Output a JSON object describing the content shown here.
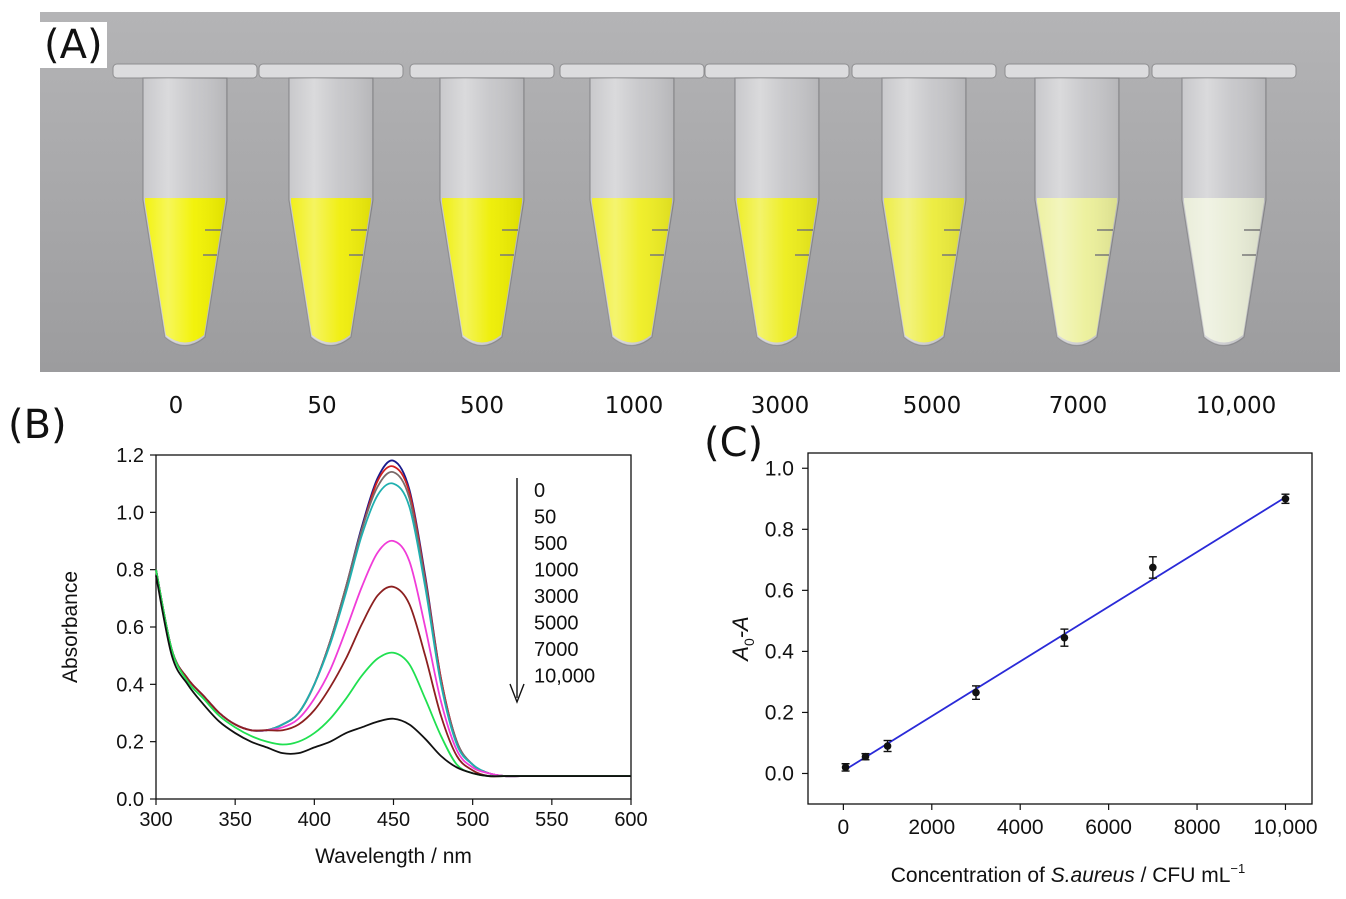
{
  "panels": {
    "a": {
      "label": "(A)"
    },
    "b": {
      "label": "(B)"
    },
    "c": {
      "label": "(C)"
    }
  },
  "photo": {
    "tube_labels": [
      "0",
      "50",
      "500",
      "1000",
      "3000",
      "5000",
      "7000",
      "10,000"
    ],
    "liquid_colors": [
      "#f2f200",
      "#f0ee0a",
      "#eeee00",
      "#efee22",
      "#eded1a",
      "#ecec3a",
      "#ecf09a",
      "#e8ecd6"
    ],
    "background_color": "#a9a9ab"
  },
  "chart_data": [
    {
      "type": "line",
      "xlabel": "Wavelength / nm",
      "ylabel": "Absorbance",
      "xlim": [
        300,
        600
      ],
      "ylim": [
        0,
        1.2
      ],
      "xticks": [
        "300",
        "350",
        "400",
        "450",
        "500",
        "550",
        "600"
      ],
      "yticks": [
        "0.0",
        "0.2",
        "0.4",
        "0.6",
        "0.8",
        "1.0",
        "1.2"
      ],
      "legend_placement": "top-right",
      "legend_items": [
        "0",
        "50",
        "500",
        "1000",
        "3000",
        "5000",
        "7000",
        "10,000"
      ],
      "x": [
        300,
        310,
        320,
        330,
        340,
        350,
        360,
        370,
        380,
        390,
        400,
        410,
        420,
        430,
        440,
        450,
        460,
        470,
        480,
        490,
        500,
        510,
        520,
        530,
        540,
        550,
        560,
        570,
        580,
        590,
        600
      ],
      "series": [
        {
          "color": "#1a1a8c",
          "values": [
            0.8,
            0.52,
            0.42,
            0.36,
            0.3,
            0.26,
            0.24,
            0.24,
            0.26,
            0.3,
            0.4,
            0.55,
            0.74,
            0.95,
            1.12,
            1.18,
            1.08,
            0.78,
            0.42,
            0.2,
            0.12,
            0.09,
            0.08,
            0.08,
            0.08,
            0.08,
            0.08,
            0.08,
            0.08,
            0.08,
            0.08
          ]
        },
        {
          "color": "#d22020",
          "values": [
            0.8,
            0.52,
            0.42,
            0.36,
            0.3,
            0.26,
            0.24,
            0.24,
            0.26,
            0.3,
            0.4,
            0.55,
            0.74,
            0.94,
            1.11,
            1.16,
            1.07,
            0.77,
            0.42,
            0.2,
            0.12,
            0.09,
            0.08,
            0.08,
            0.08,
            0.08,
            0.08,
            0.08,
            0.08,
            0.08,
            0.08
          ]
        },
        {
          "color": "#7a6a6a",
          "values": [
            0.8,
            0.52,
            0.42,
            0.36,
            0.3,
            0.26,
            0.24,
            0.24,
            0.26,
            0.3,
            0.4,
            0.55,
            0.74,
            0.94,
            1.09,
            1.14,
            1.05,
            0.76,
            0.41,
            0.2,
            0.12,
            0.09,
            0.08,
            0.08,
            0.08,
            0.08,
            0.08,
            0.08,
            0.08,
            0.08,
            0.08
          ]
        },
        {
          "color": "#20b0b0",
          "values": [
            0.8,
            0.52,
            0.42,
            0.36,
            0.3,
            0.26,
            0.24,
            0.24,
            0.26,
            0.3,
            0.4,
            0.54,
            0.72,
            0.92,
            1.06,
            1.1,
            1.02,
            0.74,
            0.4,
            0.19,
            0.12,
            0.09,
            0.08,
            0.08,
            0.08,
            0.08,
            0.08,
            0.08,
            0.08,
            0.08,
            0.08
          ]
        },
        {
          "color": "#f03cd8",
          "values": [
            0.8,
            0.52,
            0.42,
            0.36,
            0.3,
            0.26,
            0.24,
            0.24,
            0.25,
            0.28,
            0.35,
            0.45,
            0.59,
            0.74,
            0.86,
            0.9,
            0.83,
            0.6,
            0.34,
            0.17,
            0.11,
            0.09,
            0.08,
            0.08,
            0.08,
            0.08,
            0.08,
            0.08,
            0.08,
            0.08,
            0.08
          ]
        },
        {
          "color": "#8c2020",
          "values": [
            0.8,
            0.52,
            0.42,
            0.36,
            0.3,
            0.26,
            0.24,
            0.24,
            0.24,
            0.26,
            0.31,
            0.39,
            0.49,
            0.61,
            0.71,
            0.74,
            0.68,
            0.5,
            0.29,
            0.15,
            0.1,
            0.08,
            0.08,
            0.08,
            0.08,
            0.08,
            0.08,
            0.08,
            0.08,
            0.08,
            0.08
          ]
        },
        {
          "color": "#20e050",
          "values": [
            0.8,
            0.52,
            0.41,
            0.35,
            0.29,
            0.25,
            0.22,
            0.2,
            0.19,
            0.2,
            0.23,
            0.28,
            0.35,
            0.43,
            0.49,
            0.51,
            0.47,
            0.35,
            0.22,
            0.12,
            0.09,
            0.08,
            0.08,
            0.08,
            0.08,
            0.08,
            0.08,
            0.08,
            0.08,
            0.08,
            0.08
          ]
        },
        {
          "color": "#111111",
          "values": [
            0.78,
            0.5,
            0.4,
            0.33,
            0.27,
            0.23,
            0.2,
            0.18,
            0.16,
            0.16,
            0.18,
            0.2,
            0.23,
            0.25,
            0.27,
            0.28,
            0.26,
            0.21,
            0.15,
            0.11,
            0.09,
            0.08,
            0.08,
            0.08,
            0.08,
            0.08,
            0.08,
            0.08,
            0.08,
            0.08,
            0.08
          ]
        }
      ]
    },
    {
      "type": "scatter",
      "xlabel_parts": [
        "Concentration of ",
        "S.aureus",
        " / CFU mL",
        "−1"
      ],
      "ylabel_parts": [
        "A",
        "0",
        "-A"
      ],
      "xlim": [
        -800,
        10600
      ],
      "ylim": [
        -0.1,
        1.05
      ],
      "xticks": [
        "0",
        "2000",
        "4000",
        "6000",
        "8000",
        "10,000"
      ],
      "xtick_values": [
        0,
        2000,
        4000,
        6000,
        8000,
        10000
      ],
      "yticks": [
        "0.0",
        "0.2",
        "0.4",
        "0.6",
        "0.8",
        "1.0"
      ],
      "ytick_values": [
        0,
        0.2,
        0.4,
        0.6,
        0.8,
        1.0
      ],
      "x": [
        50,
        500,
        1000,
        3000,
        5000,
        7000,
        10000
      ],
      "y": [
        0.02,
        0.055,
        0.09,
        0.265,
        0.445,
        0.675,
        0.9
      ],
      "error": [
        0.012,
        0.01,
        0.018,
        0.022,
        0.028,
        0.035,
        0.015
      ],
      "fit_line": {
        "x": [
          50,
          10000
        ],
        "y": [
          0.013,
          0.905
        ],
        "color": "#2a2ad8"
      }
    }
  ]
}
